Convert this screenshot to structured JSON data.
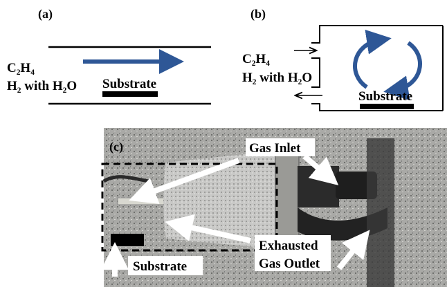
{
  "panel_a": {
    "label": "(a)",
    "gas_1": "C₂H₄",
    "gas_2": "H₂ with H₂O",
    "substrate": "Substrate"
  },
  "panel_b": {
    "label": "(b)",
    "gas_1": "C₂H₄",
    "gas_2": "H₂ with H₂O",
    "substrate": "Substrate"
  },
  "panel_c": {
    "label": "(c)",
    "gas_inlet": "Gas Inlet",
    "outlet_1": "Exhausted",
    "outlet_2": "Gas Outlet",
    "substrate": "Substrate"
  }
}
